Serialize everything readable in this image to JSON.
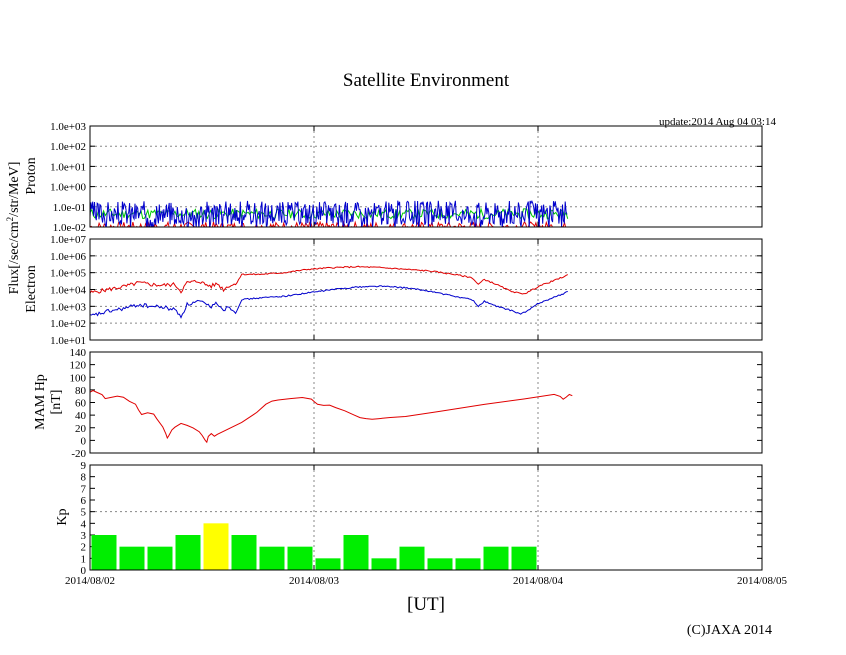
{
  "chart_data": {
    "type": "line",
    "title": "Satellite Environment",
    "update_text": "update:2014 Aug 04 03:14",
    "copyright": "(C)JAXA 2014",
    "xlabel": "[UT]",
    "x_ticks": [
      "2014/08/02",
      "2014/08/03",
      "2014/08/04",
      "2014/08/05"
    ],
    "x_range_hours": [
      0,
      72
    ],
    "shared_ylabel": "Flux[/sec/cm²/str/MeV]",
    "colors": {
      "red": "#e00000",
      "blue": "#0000cc",
      "green": "#00cc00",
      "kp_green": "#00ee00",
      "kp_yellow": "#ffff00"
    },
    "panels": [
      {
        "name": "Proton",
        "ylabel": "Proton",
        "scale": "log",
        "ylim_exp": [
          -2,
          3
        ],
        "tick_labels": [
          "1.0e+03",
          "1.0e+02",
          "1.0e+01",
          "1.0e+00",
          "1.0e-01",
          "1.0e-02"
        ],
        "grid": true,
        "data_end_hours": 51.2,
        "series": [
          {
            "color": "blue",
            "typical": "5e-2",
            "range": [
              "1e-2",
              "1.3e-1"
            ]
          },
          {
            "color": "green",
            "typical": "4e-2",
            "range": [
              "2e-2",
              "6e-2"
            ]
          },
          {
            "color": "red",
            "typical": "1e-2",
            "range": [
              "1e-2",
              "3e-2"
            ]
          }
        ]
      },
      {
        "name": "Electron",
        "ylabel": "Electron",
        "scale": "log",
        "ylim_exp": [
          1,
          7
        ],
        "tick_labels": [
          "1.0e+07",
          "1.0e+06",
          "1.0e+05",
          "1.0e+04",
          "1.0e+03",
          "1.0e+02",
          "1.0e+01"
        ],
        "grid": true,
        "series": [
          {
            "color": "red",
            "log10_points": [
              [
                0,
                3.8
              ],
              [
                3,
                4.0
              ],
              [
                6,
                4.2
              ],
              [
                8,
                4.4
              ],
              [
                10,
                4.3
              ],
              [
                12,
                4.25
              ],
              [
                14,
                4.3
              ],
              [
                15,
                3.9
              ],
              [
                16,
                4.4
              ],
              [
                18,
                4.5
              ],
              [
                19,
                4.3
              ],
              [
                20,
                4.2
              ],
              [
                21,
                4.35
              ],
              [
                22,
                4.0
              ],
              [
                23,
                4.25
              ],
              [
                24,
                4.3
              ],
              [
                25,
                4.9
              ],
              [
                28,
                4.9
              ],
              [
                32,
                5.0
              ],
              [
                36,
                5.2
              ],
              [
                40,
                5.3
              ],
              [
                44,
                5.35
              ],
              [
                48,
                5.3
              ],
              [
                52,
                5.2
              ],
              [
                56,
                5.1
              ],
              [
                60,
                4.9
              ],
              [
                63,
                4.7
              ],
              [
                64,
                4.3
              ],
              [
                65,
                4.6
              ],
              [
                67,
                4.3
              ],
              [
                69,
                3.95
              ],
              [
                71,
                3.75
              ],
              [
                72,
                3.8
              ],
              [
                74,
                4.2
              ],
              [
                77,
                4.6
              ],
              [
                79,
                4.9
              ]
            ]
          },
          {
            "color": "blue",
            "log10_points": [
              [
                0,
                2.4
              ],
              [
                3,
                2.7
              ],
              [
                6,
                2.9
              ],
              [
                8,
                3.1
              ],
              [
                10,
                3.0
              ],
              [
                12,
                2.95
              ],
              [
                14,
                2.8
              ],
              [
                15,
                2.4
              ],
              [
                16,
                3.1
              ],
              [
                18,
                3.3
              ],
              [
                19,
                3.1
              ],
              [
                20,
                3.0
              ],
              [
                21,
                3.2
              ],
              [
                22,
                2.8
              ],
              [
                23,
                3.0
              ],
              [
                24,
                2.6
              ],
              [
                25,
                3.4
              ],
              [
                28,
                3.5
              ],
              [
                32,
                3.6
              ],
              [
                36,
                3.8
              ],
              [
                40,
                4.0
              ],
              [
                44,
                4.15
              ],
              [
                48,
                4.2
              ],
              [
                52,
                4.1
              ],
              [
                56,
                3.9
              ],
              [
                60,
                3.6
              ],
              [
                63,
                3.4
              ],
              [
                64,
                3.0
              ],
              [
                65,
                3.3
              ],
              [
                67,
                3.0
              ],
              [
                69,
                2.8
              ],
              [
                71,
                2.55
              ],
              [
                72,
                2.7
              ],
              [
                74,
                3.2
              ],
              [
                77,
                3.6
              ],
              [
                79,
                3.9
              ]
            ]
          }
        ]
      },
      {
        "name": "MAM Hp",
        "ylabel": "MAM Hp",
        "ylabel2": "[nT]",
        "scale": "linear",
        "ylim": [
          -20,
          140
        ],
        "yticks": [
          -20,
          0,
          20,
          40,
          60,
          80,
          100,
          120,
          140
        ],
        "grid": true,
        "series": [
          {
            "color": "red",
            "points": [
              [
                0,
                77
              ],
              [
                1,
                78
              ],
              [
                2,
                76
              ],
              [
                4,
                72
              ],
              [
                5,
                66
              ],
              [
                7,
                68
              ],
              [
                9,
                70
              ],
              [
                11,
                68
              ],
              [
                13,
                62
              ],
              [
                15,
                58
              ],
              [
                16,
                48
              ],
              [
                17,
                42
              ],
              [
                19,
                43
              ],
              [
                21,
                41
              ],
              [
                22,
                34
              ],
              [
                24,
                22
              ],
              [
                25,
                10
              ],
              [
                25.5,
                3
              ],
              [
                26,
                8
              ],
              [
                27,
                16
              ],
              [
                28,
                20
              ],
              [
                30,
                26
              ],
              [
                32,
                24
              ],
              [
                34,
                20
              ],
              [
                36,
                14
              ],
              [
                37,
                7
              ],
              [
                38,
                0
              ],
              [
                38.5,
                -2
              ],
              [
                39,
                6
              ],
              [
                40,
                10
              ],
              [
                41,
                7
              ],
              [
                42,
                10
              ],
              [
                50,
                28
              ],
              [
                55,
                44
              ],
              [
                58,
                58
              ],
              [
                60,
                62
              ],
              [
                62,
                64
              ],
              [
                66,
                66
              ],
              [
                70,
                67
              ],
              [
                73,
                66
              ],
              [
                74,
                62
              ],
              [
                75,
                58
              ],
              [
                77,
                56
              ],
              [
                79,
                55
              ],
              [
                81,
                52
              ],
              [
                84,
                46
              ],
              [
                87,
                40
              ],
              [
                89,
                36
              ],
              [
                91,
                34
              ],
              [
                93,
                33
              ],
              [
                95,
                34
              ],
              [
                99,
                37
              ],
              [
                104,
                38
              ],
              [
                115,
                46
              ],
              [
                130,
                57
              ],
              [
                143,
                66
              ],
              [
                153,
                72
              ],
              [
                155,
                70
              ],
              [
                156,
                65
              ],
              [
                157,
                68
              ],
              [
                158,
                72
              ],
              [
                159,
                70
              ]
            ]
          }
        ]
      },
      {
        "name": "Kp",
        "ylabel": "Kp",
        "type": "bar",
        "ylim": [
          0,
          9
        ],
        "yticks": [
          0,
          1,
          2,
          3,
          4,
          5,
          6,
          7,
          8,
          9
        ],
        "grid_at": [
          5
        ],
        "bar_width_hours": 3,
        "values": [
          3,
          2,
          2,
          3,
          4,
          3,
          2,
          2,
          1,
          3,
          1,
          2,
          1,
          1,
          2,
          2
        ],
        "highlight_index": 4
      }
    ]
  }
}
